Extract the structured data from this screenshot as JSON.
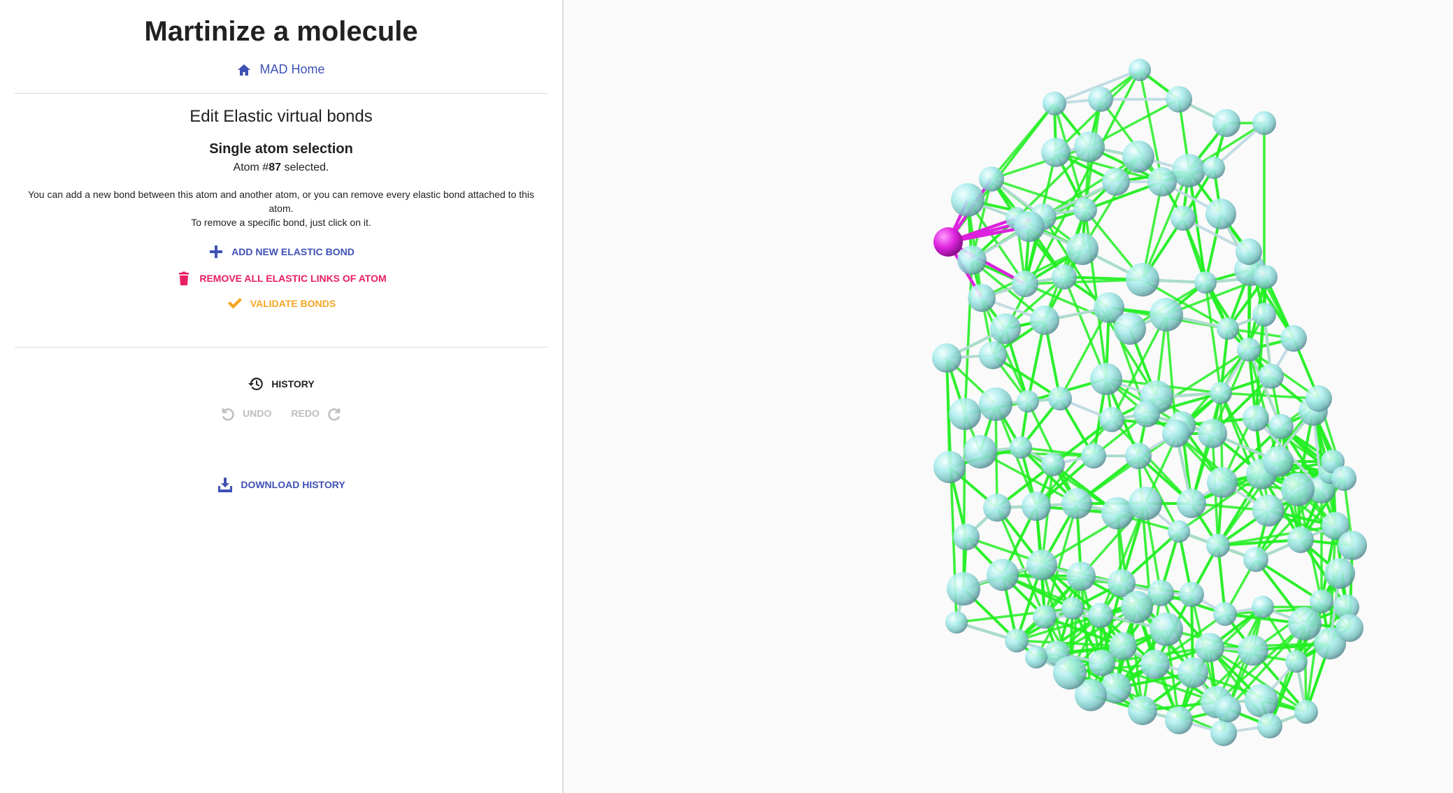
{
  "header": {
    "title": "Martinize a molecule",
    "home_link": "MAD Home"
  },
  "editor": {
    "section_title": "Edit Elastic virtual bonds",
    "selection_title": "Single atom selection",
    "atom_prefix": "Atom #",
    "atom_number": "87",
    "atom_suffix": " selected.",
    "help_line1": "You can add a new bond between this atom and another atom, or you can remove every elastic bond attached to this atom.",
    "help_line2": "To remove a specific bond, just click on it.",
    "add_bond": "Add new elastic bond",
    "remove_links": "Remove all elastic links of atom",
    "validate": "Validate bonds"
  },
  "history": {
    "label": "History",
    "undo": "Undo",
    "redo": "Redo",
    "download": "Download history"
  },
  "colors": {
    "primary": "#3f51b5",
    "danger": "#e91e63",
    "warning": "#f5a623",
    "elastic_bond": "#22ee22",
    "selected_atom": "#dd22dd",
    "atom": "#a8ecec",
    "backbone": "#bcd8e0"
  },
  "icons": [
    "home-icon",
    "plus-icon",
    "trash-icon",
    "check-icon",
    "history-icon",
    "undo-icon",
    "redo-icon",
    "download-icon"
  ]
}
